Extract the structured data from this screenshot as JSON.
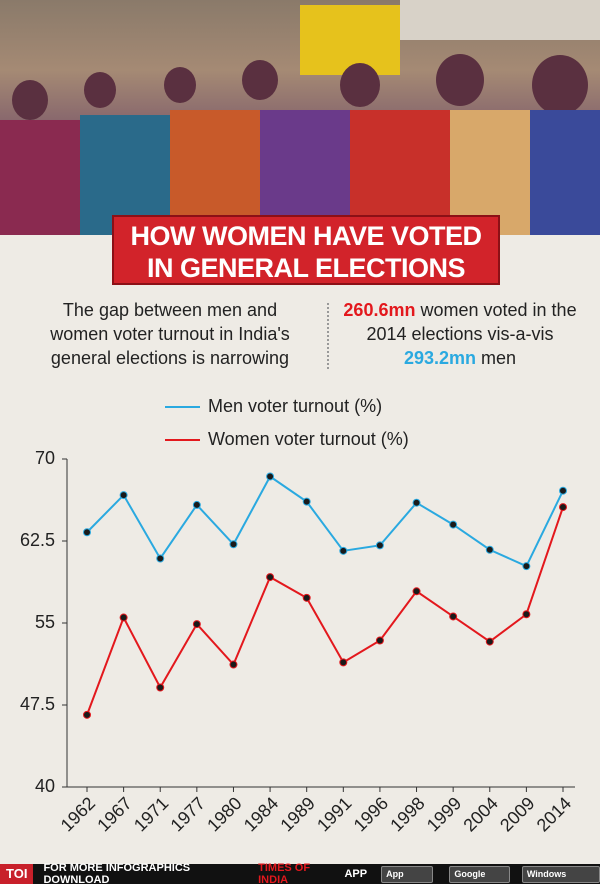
{
  "title_lines": [
    "HOW WOMEN HAVE VOTED",
    "IN GENERAL ELECTIONS"
  ],
  "left_text": [
    "The gap between men and",
    "women voter turnout in India's",
    "general elections is narrowing"
  ],
  "right_text": {
    "women_figure": "260.6mn",
    "middle": "women voted in the 2014 elections vis-a-vis",
    "men_figure": "293.2mn",
    "end": "men"
  },
  "chart_data": {
    "type": "line",
    "categories": [
      "1962",
      "1967",
      "1971",
      "1977",
      "1980",
      "1984",
      "1989",
      "1991",
      "1996",
      "1998",
      "1999",
      "2004",
      "2009",
      "2014"
    ],
    "series": [
      {
        "name": "Men voter turnout (%)",
        "color": "#2aa9e0",
        "values": [
          63.3,
          66.7,
          60.9,
          65.8,
          62.2,
          68.4,
          66.1,
          61.6,
          62.1,
          66.0,
          64.0,
          61.7,
          60.2,
          67.1
        ]
      },
      {
        "name": "Women voter turnout (%)",
        "color": "#e3181d",
        "values": [
          46.6,
          55.5,
          49.1,
          54.9,
          51.2,
          59.2,
          57.3,
          51.4,
          53.4,
          57.9,
          55.6,
          53.3,
          55.8,
          65.6
        ]
      }
    ],
    "ylim": [
      40,
      70
    ],
    "yticks": [
      40,
      47.5,
      55,
      62.5,
      70
    ],
    "grid": false,
    "legend": "top"
  },
  "footer": {
    "logo": "TOI",
    "lead": "FOR MORE  INFOGRAPHICS DOWNLOAD",
    "brand": "TIMES OF INDIA",
    "tail": "APP",
    "badges": [
      "App Store",
      "Google play",
      "Windows Phone"
    ]
  }
}
